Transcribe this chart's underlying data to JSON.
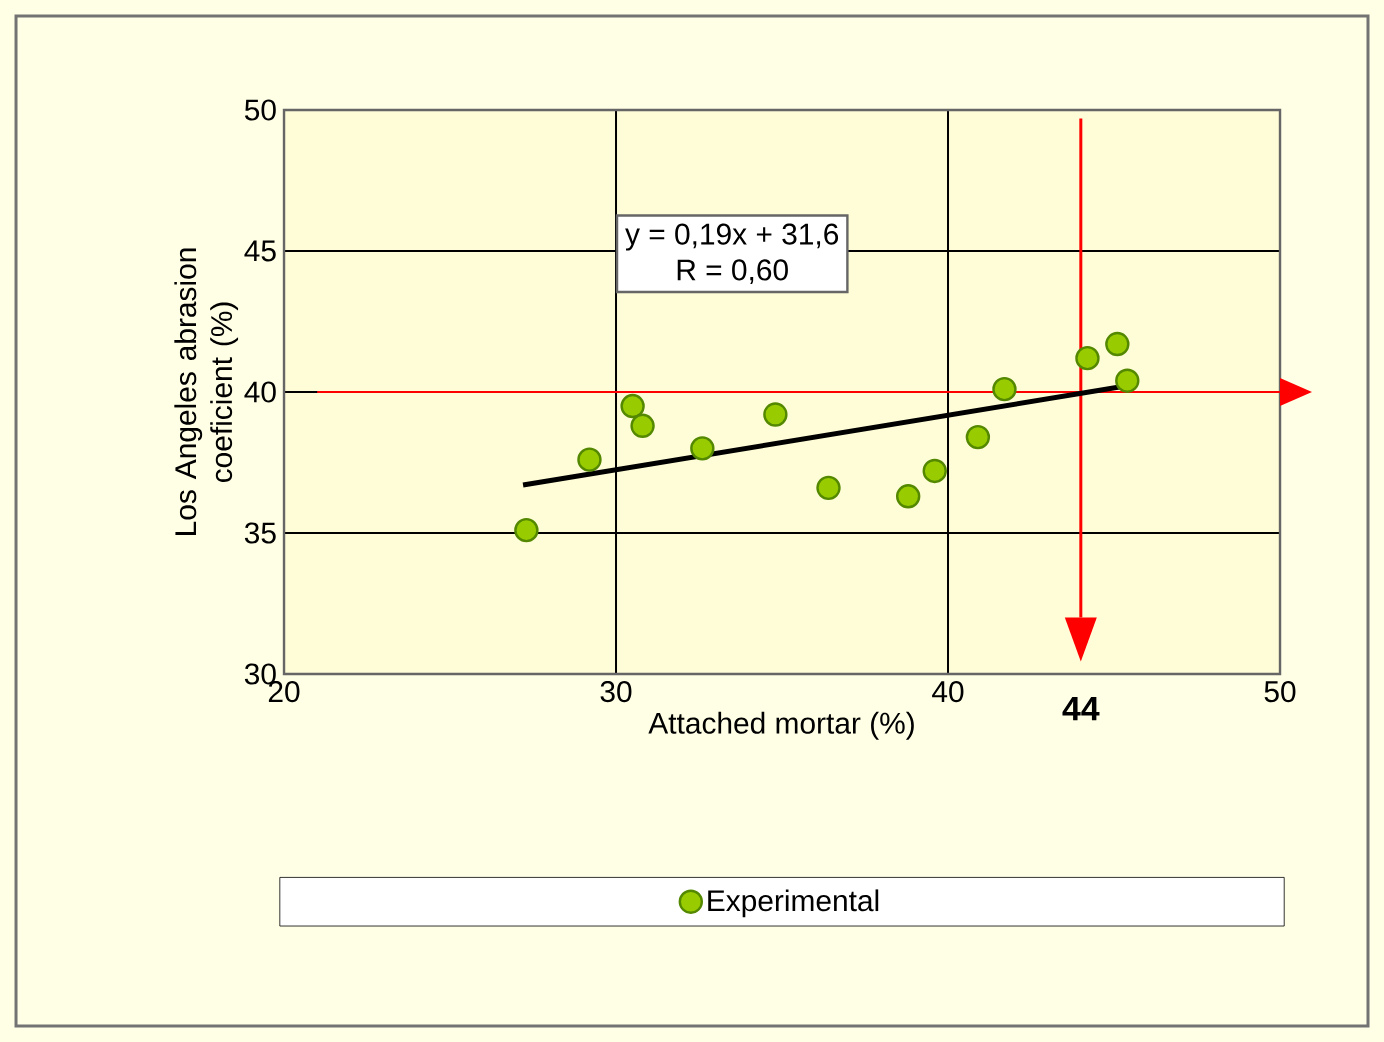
{
  "chart_data": {
    "type": "scatter",
    "xlabel": "Attached mortar (%)",
    "ylabel": "Los Angeles abrasion coeficient (%)",
    "xlim": [
      20,
      50
    ],
    "xticks": [
      20,
      30,
      40,
      50
    ],
    "ylim": [
      30,
      50
    ],
    "yticks": [
      30,
      35,
      40,
      45,
      50
    ],
    "grid": true,
    "legend": "bottom",
    "marker": "circle",
    "annotations": [
      "y = 0,19x + 31,6",
      "R = 0,60"
    ],
    "ref_lines": [
      {
        "axis": "y",
        "value": 40,
        "color": "#ff0000"
      },
      {
        "axis": "x",
        "value": 44,
        "label": "44",
        "color": "#ff0000"
      }
    ],
    "series": [
      {
        "name": "Experimental",
        "color": "#99cc00",
        "x": [
          27.3,
          29.2,
          30.5,
          30.8,
          32.6,
          34.8,
          36.4,
          38.8,
          39.6,
          40.9,
          41.7,
          44.2,
          45.1,
          45.4
        ],
        "values": [
          35.1,
          37.6,
          39.5,
          38.8,
          38.0,
          39.2,
          36.6,
          36.3,
          37.2,
          38.4,
          40.1,
          41.2,
          41.7,
          40.4
        ]
      },
      {
        "type": "line",
        "color": "#000000",
        "marker": "none",
        "x": [
          27.2,
          45.3
        ],
        "values": [
          36.7,
          40.2
        ]
      }
    ]
  }
}
